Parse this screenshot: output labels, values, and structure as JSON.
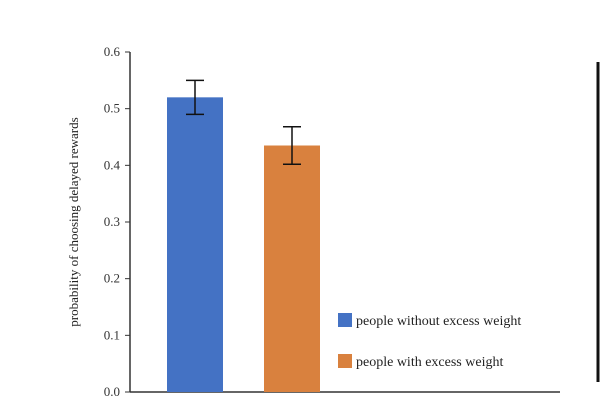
{
  "chart_data": {
    "type": "bar",
    "title": "",
    "xlabel": "",
    "ylabel": "probability of choosing delayed rewards",
    "ylim": [
      0.0,
      0.6
    ],
    "yticks": [
      "0.0",
      "0.1",
      "0.2",
      "0.3",
      "0.4",
      "0.5",
      "0.6"
    ],
    "grid": false,
    "legend_position": "bottom-right",
    "series": [
      {
        "name": "people without excess weight",
        "value": 0.52,
        "error": 0.03,
        "color": "#4472C4"
      },
      {
        "name": "people with excess weight",
        "value": 0.435,
        "error": 0.033,
        "color": "#D9813E"
      }
    ]
  }
}
